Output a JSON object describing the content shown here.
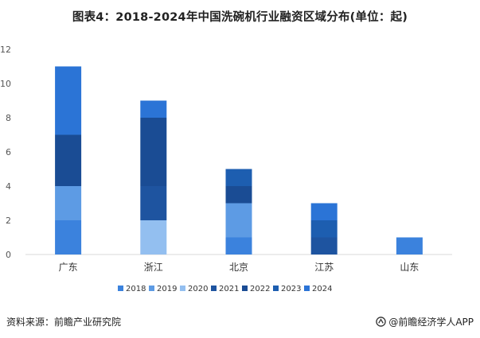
{
  "title": "图表4：2018-2024年中国洗碗机行业融资区域分布(单位：起)",
  "source": "资料来源：前瞻产业研究院",
  "brand": "@前瞻经济学人APP",
  "colors": {
    "2018": "#3b82dd",
    "2019": "#5d9be4",
    "2020": "#93bff0",
    "2021": "#1e54a0",
    "2022": "#1a4c94",
    "2023": "#1d5eb0",
    "2024": "#2b74d6"
  },
  "chart_data": {
    "type": "bar",
    "stacked": true,
    "categories": [
      "广东",
      "浙江",
      "北京",
      "江苏",
      "山东"
    ],
    "series": [
      {
        "name": "2018",
        "values": [
          2,
          0,
          1,
          0,
          1
        ]
      },
      {
        "name": "2019",
        "values": [
          2,
          0,
          2,
          0,
          0
        ]
      },
      {
        "name": "2020",
        "values": [
          0,
          2,
          0,
          0,
          0
        ]
      },
      {
        "name": "2021",
        "values": [
          0,
          2,
          0,
          1,
          0
        ]
      },
      {
        "name": "2022",
        "values": [
          3,
          4,
          1,
          0,
          0
        ]
      },
      {
        "name": "2023",
        "values": [
          0,
          0,
          1,
          1,
          0
        ]
      },
      {
        "name": "2024",
        "values": [
          4,
          1,
          0,
          1,
          0
        ]
      }
    ],
    "ylim": [
      0,
      12
    ],
    "yticks": [
      0,
      2,
      4,
      6,
      8,
      10,
      12
    ],
    "legend_position": "bottom",
    "grid": false
  }
}
